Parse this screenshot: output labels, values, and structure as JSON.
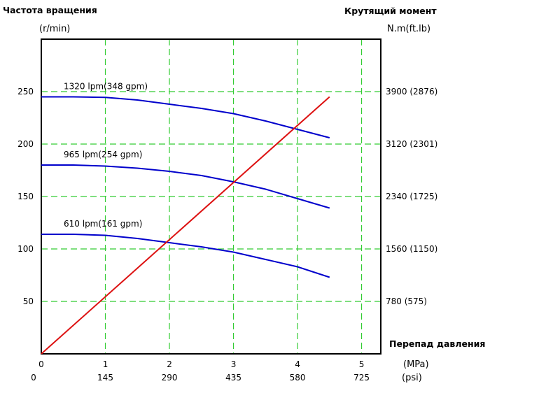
{
  "chart_data": {
    "type": "line",
    "left_axis_title": "Частота вращения",
    "left_axis_unit": "(r/min)",
    "right_axis_title": "Крутящий момент",
    "right_axis_unit": "N.m(ft.lb)",
    "x_axis_title": "Перепад давления",
    "x_unit_primary": "(MPa)",
    "x_unit_secondary": "(psi)",
    "x_ticks": [
      {
        "mpa": "0",
        "psi": "0"
      },
      {
        "mpa": "1",
        "psi": "145"
      },
      {
        "mpa": "2",
        "psi": "290"
      },
      {
        "mpa": "3",
        "psi": "435"
      },
      {
        "mpa": "4",
        "psi": "580"
      },
      {
        "mpa": "5",
        "psi": "725"
      }
    ],
    "xlim": [
      0,
      5.3
    ],
    "ylim_left": [
      0,
      300
    ],
    "left_ticks": [
      50,
      100,
      150,
      200,
      250
    ],
    "right_ticks": [
      {
        "at": 50,
        "label": "780 (575)"
      },
      {
        "at": 100,
        "label": "1560 (1150)"
      },
      {
        "at": 150,
        "label": "2340 (1725)"
      },
      {
        "at": 200,
        "label": "3120 (2301)"
      },
      {
        "at": 250,
        "label": "3900 (2876)"
      }
    ],
    "grid": true,
    "speed_series": [
      {
        "name": "1320 lpm(348 gpm)",
        "color": "#0000cc",
        "x": [
          0,
          0.5,
          1,
          1.5,
          2,
          2.5,
          3,
          3.5,
          4,
          4.5
        ],
        "y": [
          245,
          245,
          244.5,
          242,
          238,
          234,
          229,
          222,
          214,
          206
        ]
      },
      {
        "name": "965 lpm(254 gpm)",
        "color": "#0000cc",
        "x": [
          0,
          0.5,
          1,
          1.5,
          2,
          2.5,
          3,
          3.5,
          4,
          4.5
        ],
        "y": [
          180,
          180,
          179,
          177,
          174,
          170,
          164,
          157,
          148,
          139
        ]
      },
      {
        "name": "610 lpm(161 gpm)",
        "color": "#0000cc",
        "x": [
          0,
          0.5,
          1,
          1.5,
          2,
          2.5,
          3,
          3.5,
          4,
          4.5
        ],
        "y": [
          114,
          114,
          113,
          110,
          106,
          102,
          97,
          90,
          83,
          73
        ]
      }
    ],
    "torque_series": {
      "color": "#dd1111",
      "x": [
        0,
        4.5
      ],
      "y": [
        0,
        245
      ]
    }
  }
}
